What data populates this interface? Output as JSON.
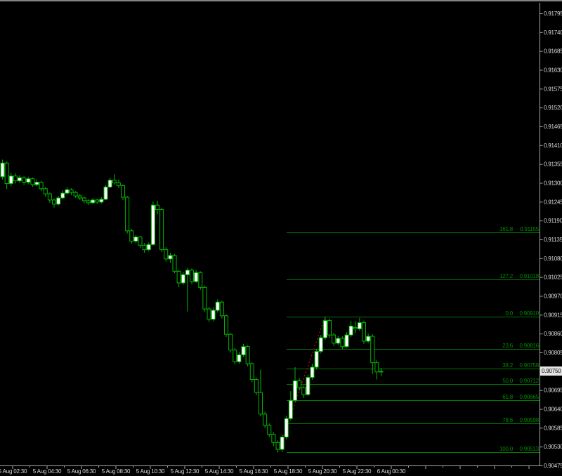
{
  "window": {
    "background": "#000000",
    "top_border_color": "#848484"
  },
  "colors": {
    "background": "#000000",
    "candle_outline": "#00B800",
    "bull_body": "#FFFFFF",
    "bear_body": "#000000",
    "fib_line": "#007A00",
    "fib_text": "#008C00",
    "trendline": "#D40000",
    "axis_line": "#A8A8A8",
    "axis_text": "#DCDCDC",
    "price_box_bg": "#E4E4E4",
    "price_box_text": "#000000"
  },
  "chart_data": {
    "type": "candlestick",
    "title": "",
    "grid": "off",
    "current_price": "0.90750",
    "y_axis": {
      "side": "right",
      "step": 0.00055,
      "labels": [
        "0.91795",
        "0.91740",
        "0.91685",
        "0.91630",
        "0.91575",
        "0.91520",
        "0.91465",
        "0.91410",
        "0.91355",
        "0.91300",
        "0.91245",
        "0.91190",
        "0.91135",
        "0.91080",
        "0.91025",
        "0.90970",
        "0.90915",
        "0.90860",
        "0.90805",
        "0.90750",
        "0.90695",
        "0.90640",
        "0.90585",
        "0.90530",
        "0.90475"
      ]
    },
    "x_axis": {
      "side": "bottom",
      "minor_tick_interval": "1 hour",
      "labels": [
        "5 Aug 02:30",
        "5 Aug 04:30",
        "5 Aug 06:30",
        "5 Aug 08:30",
        "5 Aug 10:30",
        "5 Aug 12:30",
        "5 Aug 14:30",
        "5 Aug 16:30",
        "5 Aug 18:30",
        "5 Aug 20:30",
        "5 Aug 22:30",
        "6 Aug 00:30"
      ]
    },
    "fibonacci": {
      "anchor": {
        "bar_low": 64,
        "price_low": 0.90513,
        "bar_high": 75,
        "price_high": 0.9091
      },
      "levels": [
        {
          "level": "161.8",
          "price": "0.91155"
        },
        {
          "level": "127.2",
          "price": "0.91018"
        },
        {
          "level": "0.0",
          "price": "0.90910"
        },
        {
          "level": "23.6",
          "price": "0.90816"
        },
        {
          "level": "38.2",
          "price": "0.90758"
        },
        {
          "level": "50.0",
          "price": "0.90712"
        },
        {
          "level": "61.8",
          "price": "0.90665"
        },
        {
          "level": "78.6",
          "price": "0.90598"
        },
        {
          "level": "100.0",
          "price": "0.90513"
        }
      ]
    },
    "candles": [
      [
        0.91318,
        0.91368,
        0.9131,
        0.91358
      ],
      [
        0.91358,
        0.91362,
        0.91282,
        0.91298
      ],
      [
        0.91298,
        0.9133,
        0.9129,
        0.9132
      ],
      [
        0.9132,
        0.91328,
        0.91298,
        0.91306
      ],
      [
        0.91306,
        0.91322,
        0.913,
        0.91315
      ],
      [
        0.91315,
        0.9132,
        0.91294,
        0.91302
      ],
      [
        0.91302,
        0.91318,
        0.91296,
        0.91312
      ],
      [
        0.91312,
        0.91316,
        0.91288,
        0.91295
      ],
      [
        0.91295,
        0.9131,
        0.9129,
        0.91302
      ],
      [
        0.91302,
        0.91306,
        0.91276,
        0.91283
      ],
      [
        0.91283,
        0.91288,
        0.9126,
        0.91268
      ],
      [
        0.91268,
        0.91272,
        0.91242,
        0.9125
      ],
      [
        0.9125,
        0.91255,
        0.91228,
        0.91238
      ],
      [
        0.91238,
        0.91262,
        0.91234,
        0.91256
      ],
      [
        0.91256,
        0.91278,
        0.91252,
        0.9127
      ],
      [
        0.9127,
        0.91287,
        0.91266,
        0.9128
      ],
      [
        0.9128,
        0.91284,
        0.91264,
        0.91272
      ],
      [
        0.91272,
        0.91276,
        0.91256,
        0.91262
      ],
      [
        0.91262,
        0.91268,
        0.9125,
        0.91256
      ],
      [
        0.91256,
        0.9126,
        0.9124,
        0.91248
      ],
      [
        0.91248,
        0.91252,
        0.91236,
        0.91242
      ],
      [
        0.91242,
        0.91256,
        0.91238,
        0.9125
      ],
      [
        0.9125,
        0.91254,
        0.91238,
        0.91244
      ],
      [
        0.91244,
        0.91258,
        0.9124,
        0.91252
      ],
      [
        0.91252,
        0.91294,
        0.9125,
        0.91288
      ],
      [
        0.91288,
        0.91315,
        0.91285,
        0.91308
      ],
      [
        0.91308,
        0.91325,
        0.91295,
        0.913
      ],
      [
        0.913,
        0.9131,
        0.91285,
        0.91292
      ],
      [
        0.91292,
        0.91296,
        0.9125,
        0.91258
      ],
      [
        0.91258,
        0.91262,
        0.91152,
        0.9116
      ],
      [
        0.9116,
        0.91166,
        0.91122,
        0.9113
      ],
      [
        0.9113,
        0.91148,
        0.91124,
        0.91142
      ],
      [
        0.91142,
        0.91146,
        0.9111,
        0.91118
      ],
      [
        0.91118,
        0.91124,
        0.91096,
        0.91105
      ],
      [
        0.91105,
        0.91126,
        0.911,
        0.9112
      ],
      [
        0.9112,
        0.91245,
        0.91116,
        0.91235
      ],
      [
        0.91235,
        0.91248,
        0.91208,
        0.91222
      ],
      [
        0.91222,
        0.91228,
        0.91098,
        0.91105
      ],
      [
        0.91105,
        0.91112,
        0.9107,
        0.91078
      ],
      [
        0.91078,
        0.91096,
        0.91066,
        0.91088
      ],
      [
        0.91088,
        0.91092,
        0.91036,
        0.91042
      ],
      [
        0.91042,
        0.91046,
        0.90996,
        0.91008
      ],
      [
        0.91008,
        0.9104,
        0.91002,
        0.91032
      ],
      [
        0.91032,
        0.91052,
        0.90925,
        0.91045
      ],
      [
        0.91045,
        0.9105,
        0.91004,
        0.91012
      ],
      [
        0.91012,
        0.91046,
        0.91008,
        0.91038
      ],
      [
        0.91038,
        0.91042,
        0.90988,
        0.90995
      ],
      [
        0.90995,
        0.91,
        0.90924,
        0.90932
      ],
      [
        0.90932,
        0.90938,
        0.90894,
        0.90902
      ],
      [
        0.90902,
        0.90936,
        0.90896,
        0.90928
      ],
      [
        0.90928,
        0.9096,
        0.90922,
        0.90952
      ],
      [
        0.90952,
        0.90956,
        0.90904,
        0.90912
      ],
      [
        0.90912,
        0.90916,
        0.9085,
        0.90858
      ],
      [
        0.90858,
        0.90862,
        0.90804,
        0.90812
      ],
      [
        0.90812,
        0.90818,
        0.9077,
        0.90778
      ],
      [
        0.90778,
        0.90806,
        0.90772,
        0.90798
      ],
      [
        0.90798,
        0.9083,
        0.90792,
        0.90822
      ],
      [
        0.90822,
        0.90826,
        0.90764,
        0.90772
      ],
      [
        0.90772,
        0.90776,
        0.90718,
        0.90726
      ],
      [
        0.90726,
        0.90732,
        0.9068,
        0.90688
      ],
      [
        0.90688,
        0.90755,
        0.90618,
        0.90625
      ],
      [
        0.90625,
        0.90632,
        0.90584,
        0.90592
      ],
      [
        0.90592,
        0.90598,
        0.90558,
        0.90566
      ],
      [
        0.90566,
        0.90572,
        0.90532,
        0.90542
      ],
      [
        0.90542,
        0.90548,
        0.90513,
        0.90522
      ],
      [
        0.90522,
        0.90566,
        0.90514,
        0.90558
      ],
      [
        0.90558,
        0.9062,
        0.90552,
        0.90612
      ],
      [
        0.90612,
        0.90692,
        0.90606,
        0.90665
      ],
      [
        0.90665,
        0.90762,
        0.9066,
        0.90722
      ],
      [
        0.90722,
        0.9073,
        0.90694,
        0.90702
      ],
      [
        0.90702,
        0.90708,
        0.90672,
        0.90682
      ],
      [
        0.90682,
        0.9074,
        0.90678,
        0.90732
      ],
      [
        0.90732,
        0.90772,
        0.90726,
        0.90762
      ],
      [
        0.90762,
        0.90816,
        0.90756,
        0.90808
      ],
      [
        0.90808,
        0.90856,
        0.90802,
        0.90848
      ],
      [
        0.90848,
        0.9091,
        0.90842,
        0.90898
      ],
      [
        0.90898,
        0.90904,
        0.90848,
        0.90856
      ],
      [
        0.90856,
        0.90862,
        0.90824,
        0.90832
      ],
      [
        0.90832,
        0.90854,
        0.90826,
        0.90846
      ],
      [
        0.90846,
        0.90852,
        0.90814,
        0.90822
      ],
      [
        0.90822,
        0.90864,
        0.90818,
        0.90856
      ],
      [
        0.90856,
        0.90898,
        0.9085,
        0.90882
      ],
      [
        0.90878,
        0.90896,
        0.90862,
        0.90874
      ],
      [
        0.90874,
        0.90906,
        0.90868,
        0.90892
      ],
      [
        0.90892,
        0.90898,
        0.9083,
        0.90838
      ],
      [
        0.90838,
        0.9086,
        0.90832,
        0.90852
      ],
      [
        0.90852,
        0.90858,
        0.90742,
        0.90775
      ],
      [
        0.90775,
        0.90782,
        0.90726,
        0.90748
      ],
      [
        0.90748,
        0.9076,
        0.90736,
        0.9075
      ]
    ]
  }
}
